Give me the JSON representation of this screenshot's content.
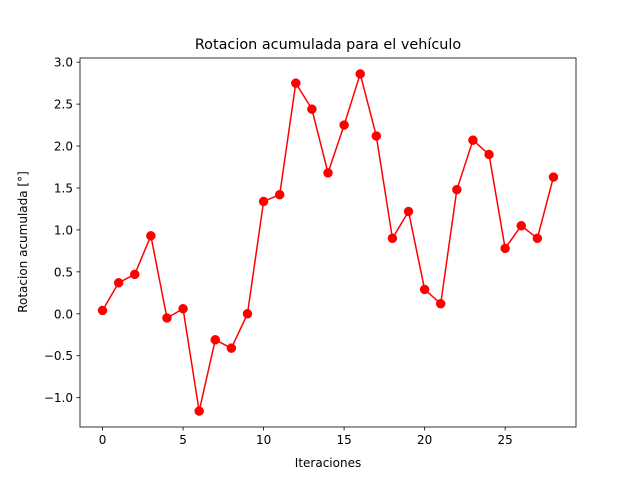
{
  "chart_data": {
    "type": "line",
    "title": "Rotacion acumulada para el vehículo",
    "xlabel": "Iteraciones",
    "ylabel": "Rotacion acumulada [°]",
    "xlim": [
      -1.4,
      29.4
    ],
    "ylim": [
      -1.35,
      3.05
    ],
    "xticks": [
      0,
      5,
      10,
      15,
      20,
      25
    ],
    "xtick_labels": [
      "0",
      "5",
      "10",
      "15",
      "20",
      "25"
    ],
    "yticks": [
      -1.0,
      -0.5,
      0.0,
      0.5,
      1.0,
      1.5,
      2.0,
      2.5,
      3.0
    ],
    "ytick_labels": [
      "−1.0",
      "−0.5",
      "0.0",
      "0.5",
      "1.0",
      "1.5",
      "2.0",
      "2.5",
      "3.0"
    ],
    "grid": false,
    "legend": "none",
    "series": [
      {
        "color": "#ff0000",
        "marker": "circle",
        "x": [
          0,
          1,
          2,
          3,
          4,
          5,
          6,
          7,
          8,
          9,
          10,
          11,
          12,
          13,
          14,
          15,
          16,
          17,
          18,
          19,
          20,
          21,
          22,
          23,
          24,
          25,
          26,
          27,
          28
        ],
        "y": [
          0.04,
          0.37,
          0.47,
          0.93,
          -0.05,
          0.06,
          -1.16,
          -0.31,
          -0.41,
          0.0,
          1.34,
          1.42,
          2.75,
          2.44,
          1.68,
          2.25,
          2.86,
          2.12,
          0.9,
          1.22,
          0.29,
          0.12,
          1.48,
          2.07,
          1.9,
          0.78,
          1.05,
          0.9,
          1.63
        ]
      }
    ]
  }
}
